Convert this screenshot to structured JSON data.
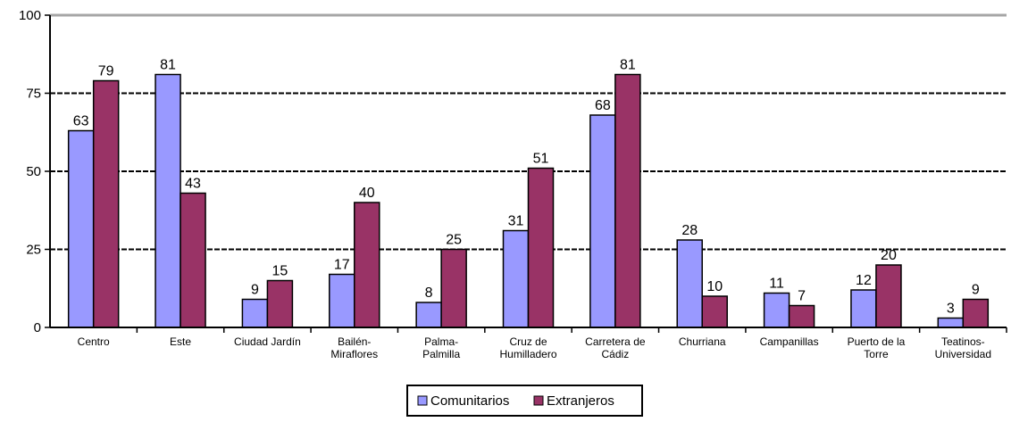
{
  "chart_data": {
    "type": "bar",
    "title": "",
    "xlabel": "",
    "ylabel": "",
    "ylim": [
      0,
      100
    ],
    "yticks": [
      0,
      25,
      50,
      75,
      100
    ],
    "grid": true,
    "legend_position": "bottom",
    "categories": [
      [
        "Centro"
      ],
      [
        "Este"
      ],
      [
        "Ciudad Jardín"
      ],
      [
        "Bailén-",
        "Miraflores"
      ],
      [
        "Palma-",
        "Palmilla"
      ],
      [
        "Cruz de",
        "Humilladero"
      ],
      [
        "Carretera de",
        "Cádiz"
      ],
      [
        "Churriana"
      ],
      [
        "Campanillas"
      ],
      [
        "Puerto de la",
        "Torre"
      ],
      [
        "Teatinos-",
        "Universidad"
      ]
    ],
    "series": [
      {
        "name": "Comunitarios",
        "color": "#9999ff",
        "values": [
          63,
          81,
          9,
          17,
          8,
          31,
          68,
          28,
          11,
          12,
          3
        ]
      },
      {
        "name": "Extranjeros",
        "color": "#993366",
        "values": [
          79,
          43,
          15,
          40,
          25,
          51,
          81,
          10,
          7,
          20,
          9
        ]
      }
    ]
  }
}
